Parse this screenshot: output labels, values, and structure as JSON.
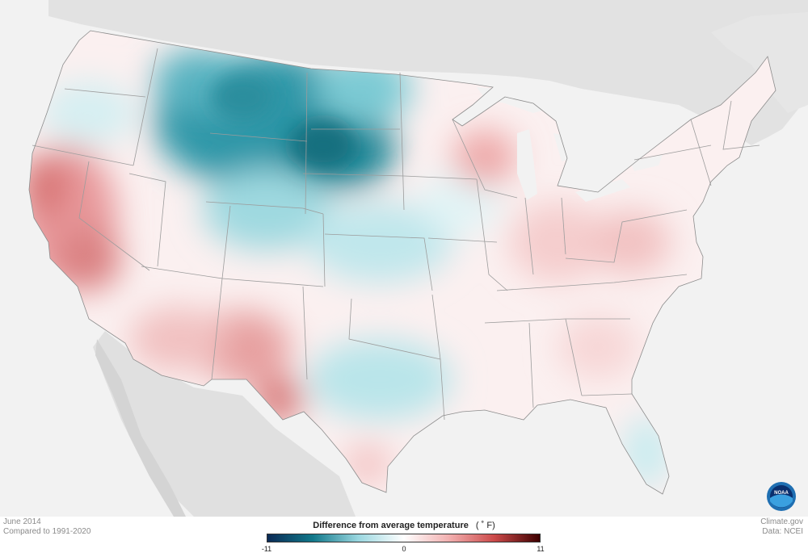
{
  "map": {
    "subject": "June 2014 contiguous U.S. temperature anomaly",
    "colors": {
      "ocean": "#f2f2f2",
      "land_other": "#e2e2e2",
      "land_mexico": "#dcdcdc",
      "state_lines": "#9c9c9c",
      "coast_line": "#8c8c8c"
    }
  },
  "meta": {
    "date": "June 2014",
    "baseline": "Compared to 1991-2020",
    "source": "Climate.gov",
    "data_credit": "Data: NCEI"
  },
  "legend": {
    "title": "Difference from average temperature",
    "unit": "( ˚ F)",
    "min": "-11",
    "mid": "0",
    "max": "11",
    "colors": [
      "#0b2a55",
      "#11788a",
      "#9ad7e0",
      "#ffffff",
      "#f2b0b0",
      "#cc4a4a",
      "#3d0000"
    ]
  },
  "logo": {
    "text": "NOAA",
    "colors": {
      "outer": "#1f6fb2",
      "inner": "#0a2f6e",
      "wave": "#3aa0e0"
    }
  }
}
